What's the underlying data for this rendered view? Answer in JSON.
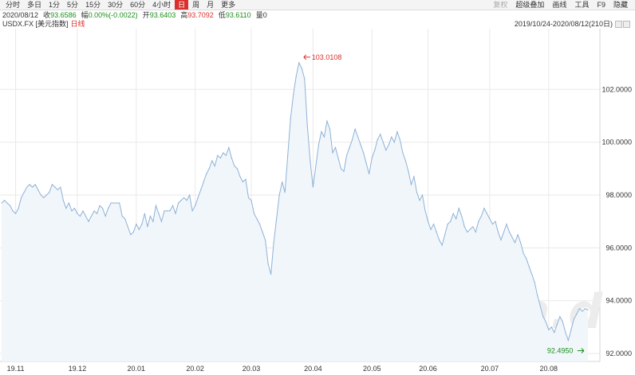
{
  "toolbar": {
    "periods": [
      "分时",
      "多日",
      "1分",
      "5分",
      "15分",
      "30分",
      "60分",
      "4小时",
      "日",
      "周",
      "月",
      "更多"
    ],
    "active_period": "日",
    "tools": [
      {
        "label": "复权",
        "disabled": true
      },
      {
        "label": "超级叠加",
        "disabled": false
      },
      {
        "label": "画线",
        "disabled": false
      },
      {
        "label": "工具",
        "disabled": false
      },
      {
        "label": "F9",
        "disabled": false
      },
      {
        "label": "隐藏",
        "disabled": false
      }
    ]
  },
  "quote": {
    "date": "2020/08/12",
    "close_label": "收",
    "close": "93.6586",
    "change_label": "幅",
    "change": "0.00%(-0.0022)",
    "open_label": "开",
    "open": "93.6403",
    "high_label": "高",
    "high": "93.7092",
    "low_label": "低",
    "low": "93.6110",
    "volume_label": "量",
    "volume": "0"
  },
  "info": {
    "instrument": "USDX.FX [美元指数]",
    "chart_type_label": "日线",
    "date_range": "2019/10/24-2020/08/12(210日)"
  },
  "watermark": "Win.d",
  "colors": {
    "line": "#8fb2d6",
    "fill": "#f1f6fb",
    "active_tab": "#d9302c",
    "high_label": "#d9302c",
    "low_label": "#1a8f1a"
  },
  "chart_data": {
    "type": "area",
    "title": "",
    "xlabel": "",
    "ylabel": "",
    "ylim": [
      91.7,
      104.3
    ],
    "grid": true,
    "y_ticks": [
      "92.0000",
      "94.0000",
      "96.0000",
      "98.0000",
      "100.0000",
      "102.0000"
    ],
    "y_tick_values": [
      92,
      94,
      96,
      98,
      100,
      102
    ],
    "x_ticks": [
      "19.11",
      "19.12",
      "20.01",
      "20.02",
      "20.03",
      "20.04",
      "20.05",
      "20.06",
      "20.07",
      "20.08"
    ],
    "x_tick_index": [
      5,
      27,
      48,
      69,
      89,
      111,
      132,
      152,
      174,
      195
    ],
    "annotations": [
      {
        "label": "103.0108",
        "index": 108,
        "value": 103.01,
        "kind": "high"
      },
      {
        "label": "92.4950",
        "index": 203,
        "value": 92.5,
        "kind": "low"
      }
    ],
    "values": [
      97.7,
      97.8,
      97.7,
      97.6,
      97.4,
      97.3,
      97.5,
      97.9,
      98.1,
      98.3,
      98.4,
      98.3,
      98.4,
      98.2,
      98.0,
      97.9,
      98.0,
      98.1,
      98.4,
      98.3,
      98.2,
      98.3,
      97.8,
      97.5,
      97.7,
      97.4,
      97.5,
      97.3,
      97.2,
      97.4,
      97.2,
      97.0,
      97.2,
      97.4,
      97.3,
      97.6,
      97.5,
      97.2,
      97.5,
      97.7,
      97.7,
      97.7,
      97.7,
      97.2,
      97.1,
      96.8,
      96.5,
      96.6,
      96.9,
      96.7,
      96.9,
      97.3,
      96.8,
      97.2,
      97.0,
      97.6,
      97.3,
      97.0,
      97.4,
      97.4,
      97.4,
      97.6,
      97.3,
      97.7,
      97.8,
      97.9,
      97.8,
      98.0,
      97.4,
      97.6,
      97.9,
      98.2,
      98.5,
      98.8,
      99.0,
      99.3,
      99.1,
      99.5,
      99.4,
      99.6,
      99.5,
      99.8,
      99.4,
      99.1,
      99.0,
      98.7,
      98.5,
      98.6,
      97.9,
      97.8,
      97.3,
      97.1,
      96.9,
      96.6,
      96.3,
      95.4,
      95.0,
      96.2,
      97.1,
      98.0,
      98.5,
      98.1,
      99.5,
      100.9,
      101.8,
      102.5,
      103.01,
      102.8,
      102.4,
      100.6,
      99.3,
      98.3,
      99.1,
      99.9,
      100.4,
      100.2,
      100.8,
      100.5,
      99.6,
      99.8,
      99.4,
      99.0,
      98.9,
      99.5,
      99.8,
      100.1,
      100.5,
      100.2,
      99.9,
      99.6,
      99.2,
      98.8,
      99.4,
      99.7,
      100.1,
      100.3,
      100.0,
      99.7,
      99.9,
      100.2,
      100.0,
      100.4,
      100.1,
      99.6,
      99.3,
      98.9,
      98.4,
      98.7,
      98.1,
      97.8,
      98.0,
      97.4,
      97.0,
      96.7,
      96.9,
      96.6,
      96.3,
      96.1,
      96.5,
      96.9,
      97.0,
      97.3,
      97.1,
      97.5,
      97.2,
      96.8,
      96.6,
      96.7,
      96.8,
      96.6,
      97.0,
      97.2,
      97.5,
      97.3,
      97.1,
      96.9,
      97.0,
      96.6,
      96.3,
      96.6,
      96.9,
      96.6,
      96.4,
      96.2,
      96.5,
      96.2,
      95.8,
      95.6,
      95.3,
      95.0,
      94.7,
      94.2,
      93.8,
      93.4,
      93.2,
      92.9,
      93.0,
      92.8,
      93.1,
      93.4,
      93.2,
      92.8,
      92.5,
      92.9,
      93.3,
      93.5,
      93.7,
      93.6,
      93.7,
      93.66
    ]
  }
}
